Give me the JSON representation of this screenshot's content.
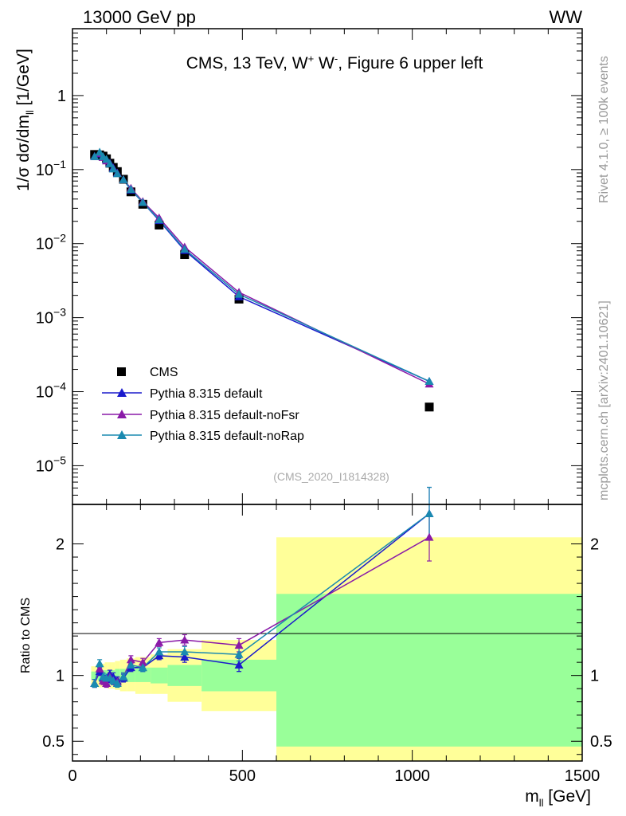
{
  "header": {
    "left": "13000 GeV pp",
    "right": "WW"
  },
  "side": {
    "rivet": "Rivet 4.1.0, ≥ 100k events",
    "mcplots": "mcplots.cern.ch [arXiv:2401.10621]"
  },
  "colors": {
    "cms": "#000000",
    "default": "#1a1acc",
    "noFsr": "#8a1aa8",
    "noRap": "#1a8ab0",
    "band_inner": "#99ff99",
    "band_outer": "#ffff99"
  },
  "chart_data": [
    {
      "type": "line",
      "title_parts": [
        "CMS, 13 TeV, W",
        "+",
        " W",
        "-",
        ", Figure 6 upper left"
      ],
      "ylabel_parts": [
        "1/σ dσ/dm",
        "ll",
        " [1/GeV]"
      ],
      "yscale": "log",
      "ylim": [
        3e-06,
        8
      ],
      "xlim": [
        0,
        1500
      ],
      "y_ticks": [
        {
          "value": 1,
          "base": "1",
          "exp": ""
        },
        {
          "value": 0.1,
          "base": "10",
          "exp": "−1"
        },
        {
          "value": 0.01,
          "base": "10",
          "exp": "−2"
        },
        {
          "value": 0.001,
          "base": "10",
          "exp": "−3"
        },
        {
          "value": 0.0001,
          "base": "10",
          "exp": "−4"
        },
        {
          "value": 1e-05,
          "base": "10",
          "exp": "−5"
        }
      ],
      "watermark": "(CMS_2020_I1814328)",
      "legend": [
        "CMS",
        "Pythia 8.315 default",
        "Pythia 8.315 default-noFsr",
        "Pythia 8.315 default-noRap"
      ],
      "bins": [
        [
          55,
          75
        ],
        [
          75,
          85
        ],
        [
          85,
          95
        ],
        [
          95,
          105
        ],
        [
          105,
          115
        ],
        [
          115,
          125
        ],
        [
          125,
          140
        ],
        [
          140,
          160
        ],
        [
          160,
          185
        ],
        [
          185,
          230
        ],
        [
          230,
          280
        ],
        [
          280,
          380
        ],
        [
          380,
          600
        ],
        [
          600,
          1500
        ]
      ],
      "x": [
        65,
        80,
        90,
        100,
        110,
        120,
        132,
        150,
        172,
        207,
        255,
        330,
        490,
        1050
      ],
      "series": [
        {
          "name": "CMS",
          "values": [
            0.16,
            0.158,
            0.152,
            0.14,
            0.122,
            0.107,
            0.094,
            0.074,
            0.05,
            0.034,
            0.0178,
            0.0071,
            0.00178,
            6.2e-05
          ]
        },
        {
          "name": "Pythia 8.315 default",
          "values": [
            0.151,
            0.163,
            0.149,
            0.136,
            0.123,
            0.106,
            0.09,
            0.073,
            0.053,
            0.036,
            0.0205,
            0.0081,
            0.00192,
            0.000138
          ]
        },
        {
          "name": "Pythia 8.315 default-noFsr",
          "values": [
            0.15,
            0.166,
            0.146,
            0.131,
            0.121,
            0.103,
            0.089,
            0.073,
            0.056,
            0.037,
            0.0223,
            0.009,
            0.0022,
            0.000127
          ]
        },
        {
          "name": "Pythia 8.315 default-noRap",
          "values": [
            0.15,
            0.172,
            0.15,
            0.138,
            0.12,
            0.102,
            0.088,
            0.073,
            0.054,
            0.036,
            0.021,
            0.0084,
            0.00207,
            0.000138
          ]
        }
      ]
    },
    {
      "type": "line",
      "ylabel": "Ratio to CMS",
      "xlabel_parts": [
        "m",
        "ll",
        " [GeV]"
      ],
      "ylim": [
        0.35,
        2.3
      ],
      "xlim": [
        0,
        1500
      ],
      "y_ticks": [
        {
          "value": 0.5,
          "label": "0.5"
        },
        {
          "value": 1,
          "label": "1"
        },
        {
          "value": 2,
          "label": "2"
        }
      ],
      "x_ticks": [
        {
          "value": 0,
          "label": "0"
        },
        {
          "value": 500,
          "label": "500"
        },
        {
          "value": 1000,
          "label": "1000"
        },
        {
          "value": 1500,
          "label": "1500"
        }
      ],
      "bands": [
        {
          "x0": 55,
          "x1": 75,
          "in_lo": 0.97,
          "in_hi": 1.03,
          "out_lo": 0.93,
          "out_hi": 1.07
        },
        {
          "x0": 75,
          "x1": 85,
          "in_lo": 0.96,
          "in_hi": 1.04,
          "out_lo": 0.91,
          "out_hi": 1.09
        },
        {
          "x0": 85,
          "x1": 95,
          "in_lo": 0.96,
          "in_hi": 1.04,
          "out_lo": 0.91,
          "out_hi": 1.09
        },
        {
          "x0": 95,
          "x1": 105,
          "in_lo": 0.96,
          "in_hi": 1.04,
          "out_lo": 0.91,
          "out_hi": 1.1
        },
        {
          "x0": 105,
          "x1": 115,
          "in_lo": 0.96,
          "in_hi": 1.04,
          "out_lo": 0.9,
          "out_hi": 1.1
        },
        {
          "x0": 115,
          "x1": 125,
          "in_lo": 0.96,
          "in_hi": 1.04,
          "out_lo": 0.9,
          "out_hi": 1.1
        },
        {
          "x0": 125,
          "x1": 140,
          "in_lo": 0.95,
          "in_hi": 1.05,
          "out_lo": 0.89,
          "out_hi": 1.11
        },
        {
          "x0": 140,
          "x1": 160,
          "in_lo": 0.95,
          "in_hi": 1.05,
          "out_lo": 0.88,
          "out_hi": 1.12
        },
        {
          "x0": 160,
          "x1": 185,
          "in_lo": 0.95,
          "in_hi": 1.05,
          "out_lo": 0.88,
          "out_hi": 1.13
        },
        {
          "x0": 185,
          "x1": 230,
          "in_lo": 0.95,
          "in_hi": 1.06,
          "out_lo": 0.86,
          "out_hi": 1.14
        },
        {
          "x0": 230,
          "x1": 280,
          "in_lo": 0.94,
          "in_hi": 1.06,
          "out_lo": 0.86,
          "out_hi": 1.16
        },
        {
          "x0": 280,
          "x1": 380,
          "in_lo": 0.92,
          "in_hi": 1.08,
          "out_lo": 0.8,
          "out_hi": 1.2
        },
        {
          "x0": 380,
          "x1": 600,
          "in_lo": 0.88,
          "in_hi": 1.12,
          "out_lo": 0.73,
          "out_hi": 1.27
        },
        {
          "x0": 600,
          "x1": 1500,
          "in_lo": 0.46,
          "in_hi": 1.62,
          "out_lo": 0.35,
          "out_hi": 2.05
        }
      ],
      "x": [
        65,
        80,
        90,
        100,
        110,
        120,
        132,
        150,
        172,
        207,
        255,
        330,
        490,
        1050
      ],
      "series": [
        {
          "name": "Pythia 8.315 default",
          "values": [
            0.94,
            1.03,
            0.98,
            0.97,
            1.01,
            0.99,
            0.96,
            0.98,
            1.06,
            1.06,
            1.15,
            1.14,
            1.08,
            2.23
          ],
          "err": [
            0.03,
            0.03,
            0.03,
            0.03,
            0.03,
            0.03,
            0.03,
            0.03,
            0.03,
            0.03,
            0.03,
            0.04,
            0.05,
            0.2
          ]
        },
        {
          "name": "Pythia 8.315 default-noFsr",
          "values": [
            0.94,
            1.05,
            0.96,
            0.94,
            0.99,
            0.96,
            0.95,
            0.99,
            1.12,
            1.1,
            1.25,
            1.27,
            1.23,
            2.05
          ],
          "err": [
            0.03,
            0.03,
            0.03,
            0.03,
            0.03,
            0.03,
            0.03,
            0.03,
            0.03,
            0.03,
            0.03,
            0.04,
            0.05,
            0.18
          ]
        },
        {
          "name": "Pythia 8.315 default-noRap",
          "values": [
            0.94,
            1.09,
            0.99,
            0.98,
            0.98,
            0.96,
            0.94,
            0.99,
            1.08,
            1.06,
            1.18,
            1.18,
            1.16,
            2.23
          ],
          "err": [
            0.03,
            0.03,
            0.03,
            0.03,
            0.03,
            0.03,
            0.03,
            0.03,
            0.03,
            0.03,
            0.03,
            0.04,
            0.05,
            0.2
          ]
        }
      ]
    }
  ]
}
